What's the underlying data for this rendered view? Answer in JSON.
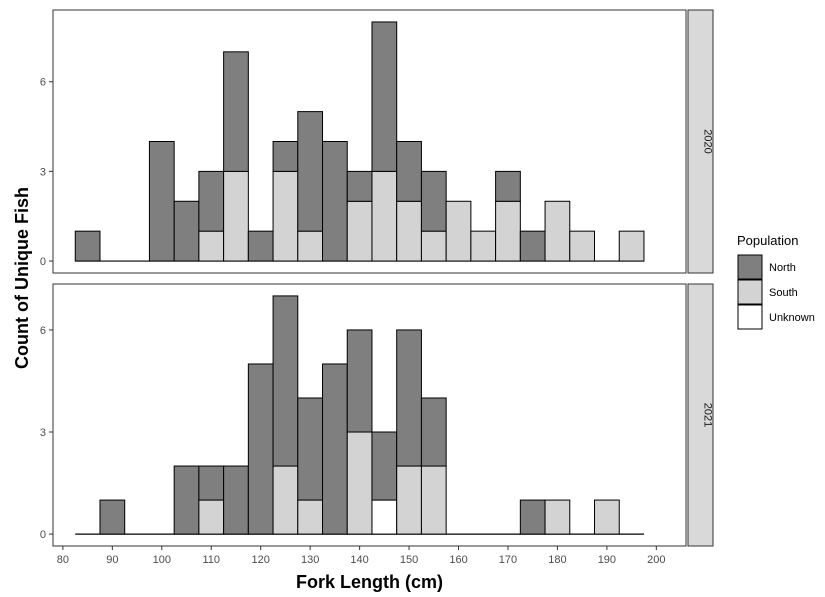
{
  "chart_data": {
    "type": "bar",
    "stacked": true,
    "xlabel": "Fork Length (cm)",
    "ylabel": "Count of Unique Fish",
    "xlim": [
      78,
      206
    ],
    "x_ticks": [
      80,
      90,
      100,
      110,
      120,
      130,
      140,
      150,
      160,
      170,
      180,
      190,
      200
    ],
    "y_ticks": [
      0,
      3,
      6
    ],
    "bin_width": 5,
    "bin_centers": [
      85,
      90,
      95,
      100,
      105,
      110,
      115,
      120,
      125,
      130,
      135,
      140,
      145,
      150,
      155,
      160,
      165,
      170,
      175,
      180,
      185,
      190,
      195
    ],
    "grid": false,
    "legend": {
      "title": "Population",
      "position": "right",
      "entries": [
        {
          "name": "North",
          "color": "#7f7f7f"
        },
        {
          "name": "South",
          "color": "#d3d3d3"
        },
        {
          "name": "Unknown",
          "color": "#ffffff"
        }
      ]
    },
    "panels": [
      {
        "label": "2020",
        "ylim": [
          -0.4,
          8.4
        ],
        "series": [
          {
            "name": "North",
            "values": [
              1,
              0,
              0,
              4,
              2,
              2,
              4,
              1,
              1,
              4,
              4,
              1,
              5,
              2,
              2,
              0,
              0,
              1,
              1,
              0,
              0,
              0,
              0
            ]
          },
          {
            "name": "South",
            "values": [
              0,
              0,
              0,
              0,
              0,
              1,
              3,
              0,
              3,
              1,
              0,
              2,
              3,
              2,
              1,
              2,
              1,
              2,
              0,
              2,
              1,
              0,
              1
            ]
          },
          {
            "name": "Unknown",
            "values": [
              0,
              0,
              0,
              0,
              0,
              0,
              0,
              0,
              0,
              0,
              0,
              0,
              0,
              0,
              0,
              0,
              0,
              0,
              0,
              0,
              0,
              0,
              0
            ]
          }
        ]
      },
      {
        "label": "2021",
        "ylim": [
          -0.35,
          7.35
        ],
        "series": [
          {
            "name": "North",
            "values": [
              0,
              1,
              0,
              0,
              2,
              1,
              2,
              5,
              5,
              3,
              5,
              3,
              2,
              4,
              2,
              0,
              0,
              0,
              1,
              0,
              0,
              0,
              0
            ]
          },
          {
            "name": "South",
            "values": [
              0,
              0,
              0,
              0,
              0,
              1,
              0,
              0,
              2,
              1,
              0,
              3,
              0,
              2,
              2,
              0,
              0,
              0,
              0,
              1,
              0,
              1,
              0
            ]
          },
          {
            "name": "Unknown",
            "values": [
              0,
              0,
              0,
              0,
              0,
              0,
              0,
              0,
              0,
              0,
              0,
              0,
              1,
              0,
              0,
              0,
              0,
              0,
              0,
              0,
              0,
              0,
              0
            ]
          }
        ]
      }
    ]
  }
}
